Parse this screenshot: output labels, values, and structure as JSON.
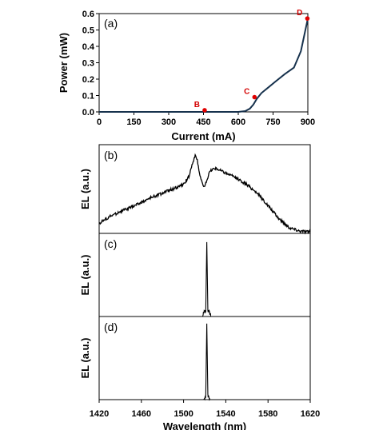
{
  "chart_data": [
    {
      "type": "line",
      "panel_label": "(a)",
      "xlabel": "Current (mA)",
      "ylabel": "Power (mW)",
      "xlim": [
        0,
        900
      ],
      "ylim": [
        0,
        0.6
      ],
      "xticks": [
        0,
        150,
        300,
        450,
        600,
        750,
        900
      ],
      "yticks": [
        0.0,
        0.1,
        0.2,
        0.3,
        0.4,
        0.5,
        0.6
      ],
      "ytick_labels": [
        "0.0",
        "0.1",
        "0.2",
        "0.3",
        "0.4",
        "0.5",
        "0.6"
      ],
      "line_color": "#17324d",
      "series": [
        {
          "x": [
            0,
            200,
            400,
            600,
            630,
            650,
            665,
            680,
            700,
            730,
            760,
            800,
            840,
            870,
            900
          ],
          "y": [
            0,
            0,
            0,
            0,
            0.005,
            0.02,
            0.045,
            0.08,
            0.115,
            0.15,
            0.185,
            0.23,
            0.27,
            0.37,
            0.57
          ]
        }
      ],
      "points": [
        {
          "label": "B",
          "x": 455,
          "y": 0.01
        },
        {
          "label": "C",
          "x": 670,
          "y": 0.09
        },
        {
          "label": "D",
          "x": 898,
          "y": 0.57
        }
      ],
      "point_color": "#e00000"
    },
    {
      "type": "line",
      "panel_label": "(b)",
      "ylabel": "EL (a.u.)",
      "xlim": [
        1420,
        1620
      ],
      "ylim": [
        0,
        1
      ],
      "description_of_curve": "broad noisy spectrum with sharp peak near 1512 nm and second hump near 1528 nm",
      "series": [
        {
          "x": [
            1420,
            1430,
            1440,
            1450,
            1460,
            1470,
            1480,
            1490,
            1500,
            1505,
            1508,
            1511,
            1513,
            1515,
            1518,
            1520,
            1522,
            1525,
            1528,
            1532,
            1540,
            1550,
            1560,
            1570,
            1580,
            1590,
            1600,
            1610,
            1620
          ],
          "y": [
            0.12,
            0.2,
            0.26,
            0.31,
            0.37,
            0.43,
            0.48,
            0.53,
            0.58,
            0.68,
            0.82,
            0.92,
            0.88,
            0.72,
            0.58,
            0.55,
            0.64,
            0.74,
            0.77,
            0.77,
            0.72,
            0.66,
            0.58,
            0.48,
            0.33,
            0.18,
            0.07,
            0.03,
            0.02
          ]
        }
      ]
    },
    {
      "type": "line",
      "panel_label": "(c)",
      "ylabel": "EL (a.u.)",
      "xlim": [
        1420,
        1620
      ],
      "ylim": [
        0,
        1
      ],
      "series": [
        {
          "x": [
            1420,
            1518,
            1519,
            1520,
            1521,
            1522,
            1523,
            1524,
            1525,
            1526,
            1620
          ],
          "y": [
            0,
            0,
            0.05,
            0.08,
            0.07,
            0.95,
            0.08,
            0.06,
            0.05,
            0,
            0
          ]
        }
      ]
    },
    {
      "type": "line",
      "panel_label": "(d)",
      "ylabel": "EL (a.u.)",
      "xlabel": "Wavelength (nm)",
      "xlim": [
        1420,
        1620
      ],
      "ylim": [
        0,
        1
      ],
      "xticks": [
        1420,
        1460,
        1500,
        1540,
        1580,
        1620
      ],
      "series": [
        {
          "x": [
            1420,
            1519,
            1520,
            1521,
            1522,
            1523,
            1524,
            1525,
            1620
          ],
          "y": [
            0,
            0,
            0.02,
            0.04,
            0.97,
            0.05,
            0.03,
            0,
            0
          ]
        }
      ]
    }
  ]
}
